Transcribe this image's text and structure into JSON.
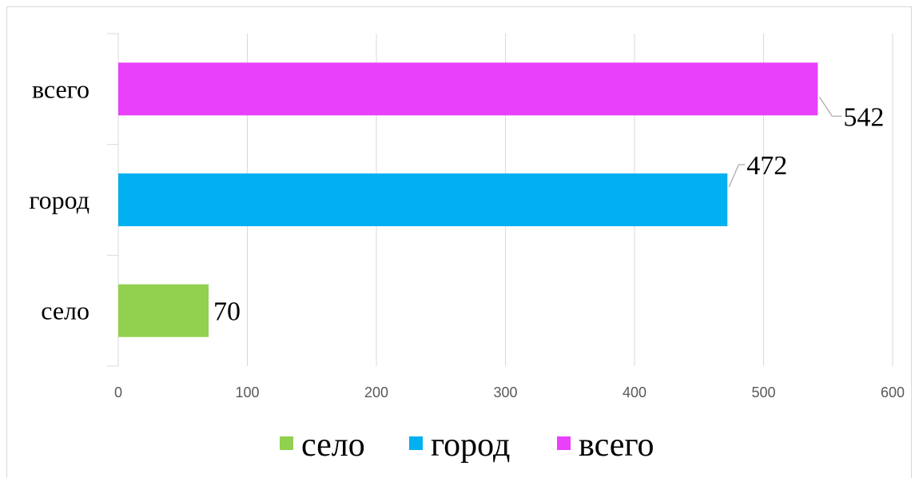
{
  "chart_data": {
    "type": "bar",
    "orientation": "horizontal",
    "title": "",
    "xlabel": "",
    "ylabel": "",
    "categories": [
      "село",
      "город",
      "всего"
    ],
    "values": [
      70,
      472,
      542
    ],
    "colors": [
      "#92d050",
      "#00b0f0",
      "#e840fb"
    ],
    "xlim": [
      0,
      600
    ],
    "x_ticks": [
      0,
      100,
      200,
      300,
      400,
      500,
      600
    ],
    "x_tick_labels": [
      "0",
      "100",
      "200",
      "300",
      "400",
      "500",
      "600"
    ],
    "data_labels": [
      "70",
      "472",
      "542"
    ],
    "grid": "vertical",
    "legend": {
      "position": "bottom",
      "entries": [
        {
          "label": "село",
          "color": "#92d050"
        },
        {
          "label": "город",
          "color": "#00b0f0"
        },
        {
          "label": "всего",
          "color": "#e840fb"
        }
      ]
    }
  }
}
